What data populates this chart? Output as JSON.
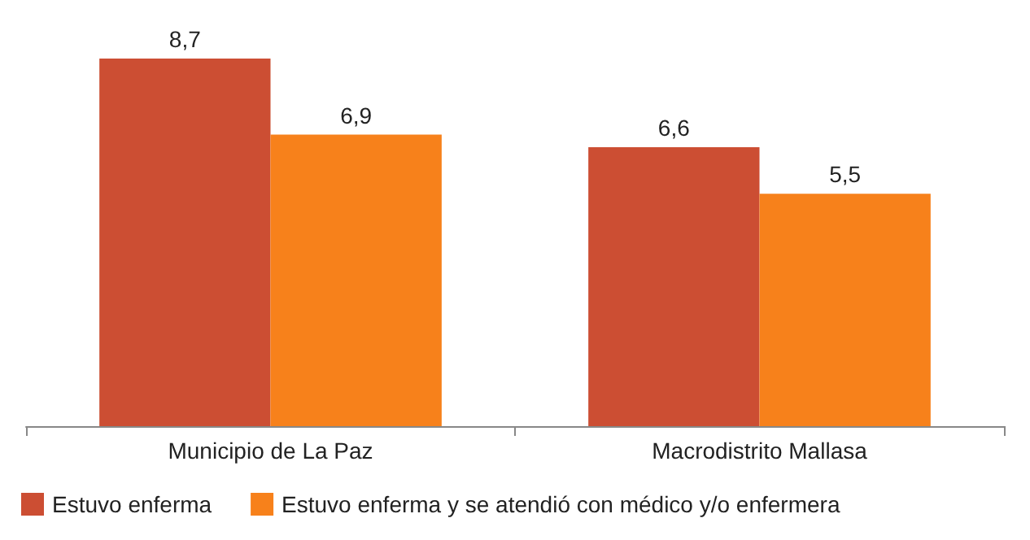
{
  "chart_data": {
    "type": "bar",
    "categories": [
      "Municipio de La Paz",
      "Macrodistrito Mallasa"
    ],
    "series": [
      {
        "name": "Estuvo enferma",
        "color": "#cc4e33",
        "values": [
          8.7,
          6.6
        ],
        "value_labels": [
          "8,7",
          "6,6"
        ]
      },
      {
        "name": "Estuvo enferma y se atendió con médico y/o enfermera",
        "color": "#f7811b",
        "values": [
          6.9,
          5.5
        ],
        "value_labels": [
          "6,9",
          "5,5"
        ]
      }
    ],
    "legend": "bottom left"
  }
}
